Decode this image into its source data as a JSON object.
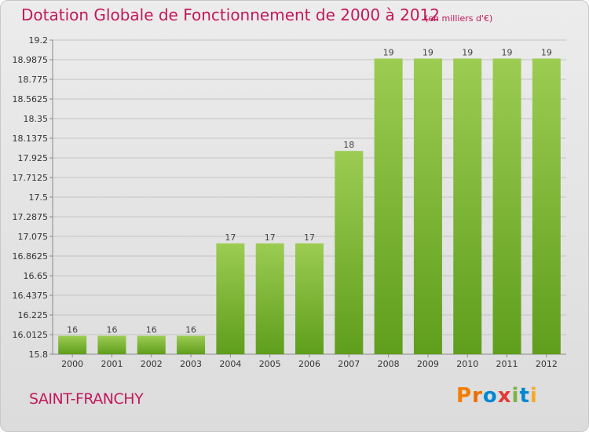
{
  "header": {
    "title": "Dotation Globale de Fonctionnement de 2000 à 2012",
    "subtitle": "(en milliers d'€)"
  },
  "footer": {
    "commune": "SAINT-FRANCHY",
    "logo_text": "Proxiti",
    "logo_colors": [
      "#f57c00",
      "#ef6c00",
      "#0288d1",
      "#e53935",
      "#7cb342",
      "#0288d1",
      "#f9a825"
    ]
  },
  "chart_data": {
    "type": "bar",
    "title": "Dotation Globale de Fonctionnement de 2000 à 2012",
    "subtitle": "(en milliers d'€)",
    "categories": [
      "2000",
      "2001",
      "2002",
      "2003",
      "2004",
      "2005",
      "2006",
      "2007",
      "2008",
      "2009",
      "2010",
      "2011",
      "2012"
    ],
    "values": [
      16,
      16,
      16,
      16,
      17,
      17,
      17,
      18,
      19,
      19,
      19,
      19,
      19
    ],
    "data_labels": [
      "16",
      "16",
      "16",
      "16",
      "17",
      "17",
      "17",
      "18",
      "19",
      "19",
      "19",
      "19",
      "19"
    ],
    "ylim": [
      15.8,
      19.2
    ],
    "yticks": [
      "19.2",
      "18.9875",
      "18.775",
      "18.5625",
      "18.35",
      "18.1375",
      "17.925",
      "17.7125",
      "17.5",
      "17.2875",
      "17.075",
      "16.8625",
      "16.65",
      "16.4375",
      "16.225",
      "16.0125",
      "15.8"
    ],
    "grid": true,
    "bar_color": "#7cb82f",
    "xlabel": "",
    "ylabel": ""
  }
}
